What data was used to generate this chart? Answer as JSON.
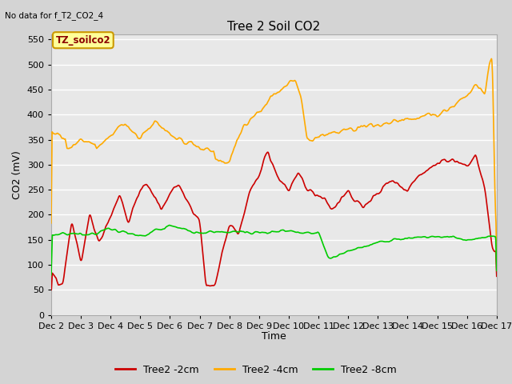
{
  "title": "Tree 2 Soil CO2",
  "top_left_note": "No data for f_T2_CO2_4",
  "ylabel": "CO2 (mV)",
  "xlabel": "Time",
  "ylim": [
    0,
    560
  ],
  "yticks": [
    0,
    50,
    100,
    150,
    200,
    250,
    300,
    350,
    400,
    450,
    500,
    550
  ],
  "xtick_labels": [
    "Dec 2",
    "Dec 3",
    "Dec 4",
    "Dec 5",
    "Dec 6",
    "Dec 7",
    "Dec 8",
    "Dec 9",
    "Dec 10",
    "Dec 11",
    "Dec 12",
    "Dec 13",
    "Dec 14",
    "Dec 15",
    "Dec 16",
    "Dec 17"
  ],
  "legend_entries": [
    "Tree2 -2cm",
    "Tree2 -4cm",
    "Tree2 -8cm"
  ],
  "legend_colors": [
    "#cc0000",
    "#ffaa00",
    "#00cc00"
  ],
  "inset_label": "TZ_soilco2",
  "inset_bg": "#ffff99",
  "inset_border": "#cc9900",
  "fig_bg": "#d4d4d4",
  "plot_bg": "#e8e8e8",
  "grid_color": "#ffffff",
  "line_width": 1.2,
  "red_color": "#cc0000",
  "orange_color": "#ffaa00",
  "green_color": "#00cc00"
}
